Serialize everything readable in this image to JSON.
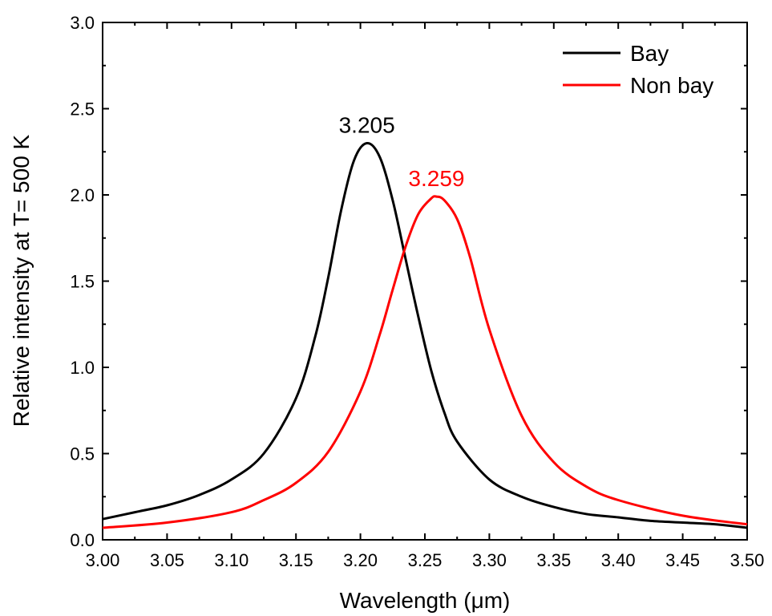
{
  "chart_data": {
    "type": "line",
    "xlabel": "Wavelength (μm)",
    "ylabel": "Relative intensity at T= 500 K",
    "xlim": [
      3.0,
      3.5
    ],
    "ylim": [
      0.0,
      3.0
    ],
    "xticks": [
      "3.00",
      "3.05",
      "3.10",
      "3.15",
      "3.20",
      "3.25",
      "3.30",
      "3.35",
      "3.40",
      "3.45",
      "3.50"
    ],
    "yticks": [
      "0.0",
      "0.5",
      "1.0",
      "1.5",
      "2.0",
      "2.5",
      "3.0"
    ],
    "grid": false,
    "legend_position": "top-right",
    "series": [
      {
        "name": "Bay",
        "color": "#000000",
        "x": [
          3.0,
          3.025,
          3.05,
          3.075,
          3.1,
          3.125,
          3.15,
          3.165,
          3.175,
          3.185,
          3.195,
          3.205,
          3.215,
          3.225,
          3.235,
          3.245,
          3.255,
          3.265,
          3.275,
          3.3,
          3.325,
          3.35,
          3.375,
          3.4,
          3.425,
          3.45,
          3.475,
          3.5
        ],
        "y": [
          0.12,
          0.16,
          0.2,
          0.26,
          0.35,
          0.5,
          0.82,
          1.18,
          1.52,
          1.91,
          2.2,
          2.3,
          2.22,
          1.97,
          1.63,
          1.29,
          0.98,
          0.74,
          0.57,
          0.35,
          0.25,
          0.19,
          0.15,
          0.13,
          0.11,
          0.1,
          0.09,
          0.07
        ],
        "peak_label": "3.205",
        "peak_x": 3.205,
        "peak_y": 2.3
      },
      {
        "name": "Non bay",
        "color": "#ff0000",
        "x": [
          3.0,
          3.05,
          3.1,
          3.125,
          3.15,
          3.175,
          3.2,
          3.215,
          3.225,
          3.235,
          3.245,
          3.255,
          3.259,
          3.265,
          3.275,
          3.285,
          3.3,
          3.325,
          3.35,
          3.375,
          3.4,
          3.45,
          3.5
        ],
        "y": [
          0.07,
          0.1,
          0.16,
          0.23,
          0.33,
          0.51,
          0.86,
          1.19,
          1.45,
          1.7,
          1.89,
          1.98,
          1.99,
          1.97,
          1.86,
          1.64,
          1.22,
          0.72,
          0.45,
          0.31,
          0.23,
          0.14,
          0.09
        ],
        "peak_label": "3.259",
        "peak_x": 3.259,
        "peak_y": 1.99
      }
    ]
  }
}
